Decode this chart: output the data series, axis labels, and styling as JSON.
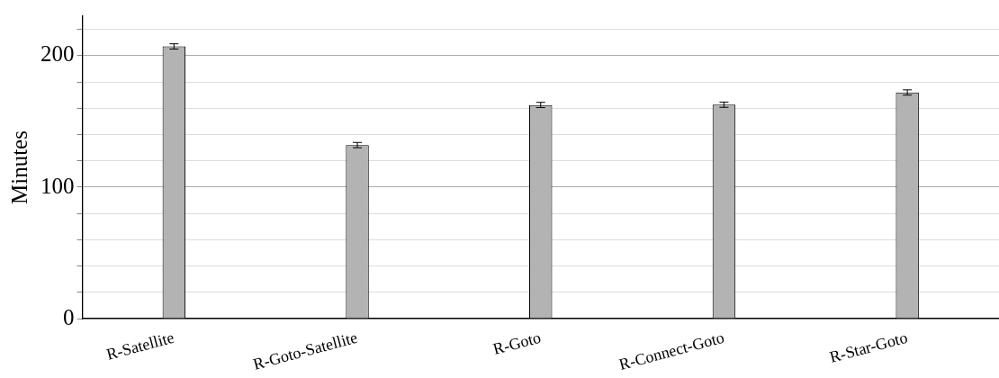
{
  "chart_data": {
    "type": "bar",
    "ylabel": "Minutes",
    "categories": [
      "R-Satellite",
      "R-Goto-Satellite",
      "R-Goto",
      "R-Connect-Goto",
      "R-Star-Goto"
    ],
    "values": [
      207,
      132,
      162.5,
      162.7,
      172
    ],
    "errors": [
      2,
      2,
      2,
      2,
      2
    ],
    "color": "#b3b3b3",
    "ylim": [
      0,
      230
    ],
    "yticks": [
      0,
      {
        "value": 20,
        "label": null
      },
      {
        "value": 40,
        "label": null
      },
      {
        "value": 60,
        "label": null
      },
      {
        "value": 80,
        "label": null
      },
      100,
      {
        "value": 120,
        "label": null
      },
      {
        "value": 140,
        "label": null
      },
      {
        "value": 160,
        "label": null
      },
      {
        "value": 180,
        "label": null
      },
      200,
      {
        "value": 220,
        "label": null
      }
    ],
    "grid": "y"
  }
}
